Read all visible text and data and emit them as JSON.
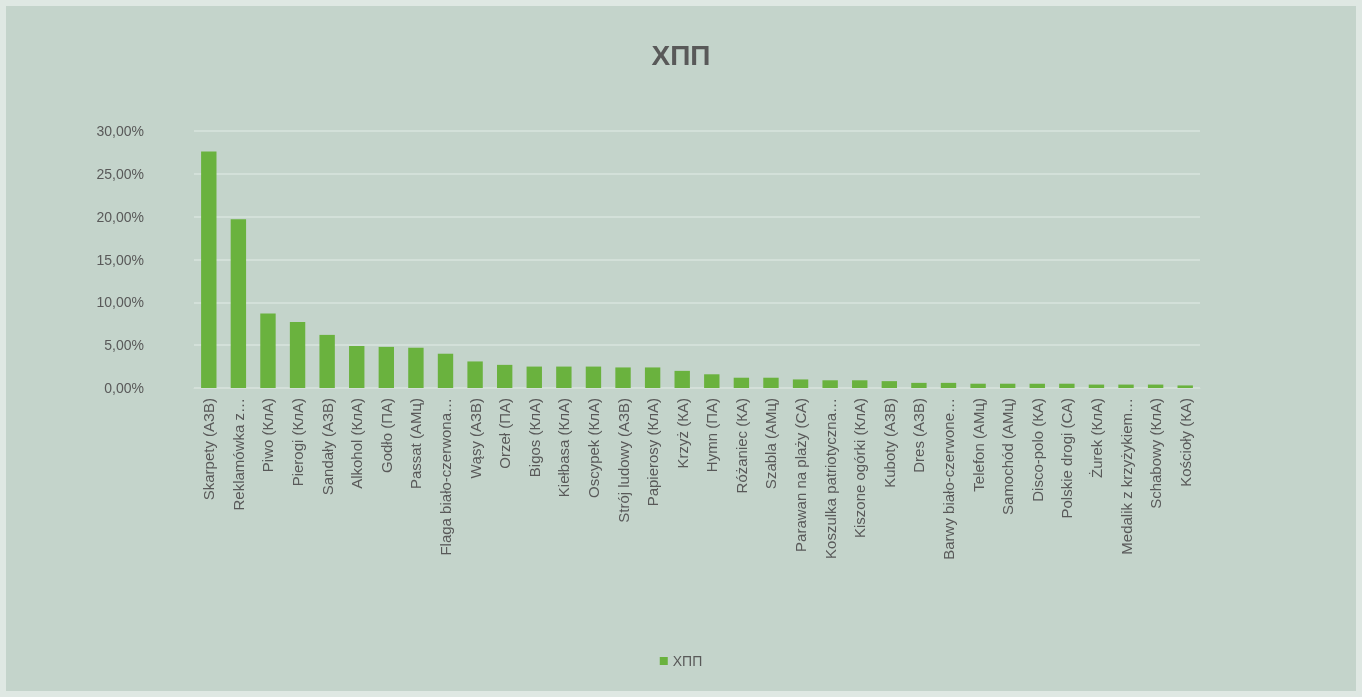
{
  "chart_data": {
    "type": "bar",
    "title": "ХПП",
    "categories": [
      "Skarpety (АЗВ)",
      "Reklamówka z…",
      "Piwo (КлА)",
      "Pierogi (КлА)",
      "Sandały (АЗВ)",
      "Alkohol (КлА)",
      "Godło (ПА)",
      "Passat (АМц)",
      "Flaga biało-czerwona…",
      "Wąsy (АЗВ)",
      "Orzeł (ПА)",
      "Bigos (КлА)",
      "Kiełbasa (КлА)",
      "Oscypek (КлА)",
      "Strój ludowy (АЗВ)",
      "Papierosy (КлА)",
      "Krzyż (КА)",
      "Hymn (ПА)",
      "Różaniec (КА)",
      "Szabla (АМц)",
      "Parawan na plaży (СА)",
      "Koszulka patriotyczna…",
      "Kiszone ogórki (КлА)",
      "Kuboty (АЗВ)",
      "Dres (АЗВ)",
      "Barwy biało-czerwone…",
      "Telefon (АМц)",
      "Samochód (АМц)",
      "Disco-polo (КА)",
      "Polskie drogi (СА)",
      "Żurek (КлА)",
      "Medalik z krzyżykiem…",
      "Schabowy (КлА)",
      "Kościoły (КА)"
    ],
    "series": [
      {
        "name": "ХПП",
        "color": "#6ab23e",
        "values": [
          27.6,
          19.7,
          8.7,
          7.7,
          6.2,
          4.9,
          4.8,
          4.7,
          4.0,
          3.1,
          2.7,
          2.5,
          2.5,
          2.5,
          2.4,
          2.4,
          2.0,
          1.6,
          1.2,
          1.2,
          1.0,
          0.9,
          0.9,
          0.8,
          0.6,
          0.6,
          0.5,
          0.5,
          0.5,
          0.5,
          0.4,
          0.4,
          0.4,
          0.3
        ]
      }
    ],
    "ylim": [
      0,
      30
    ],
    "yticks": [
      {
        "value": 0,
        "label": "0,00%"
      },
      {
        "value": 5,
        "label": "5,00%"
      },
      {
        "value": 10,
        "label": "10,00%"
      },
      {
        "value": 15,
        "label": "15,00%"
      },
      {
        "value": 20,
        "label": "20,00%"
      },
      {
        "value": 25,
        "label": "25,00%"
      },
      {
        "value": 30,
        "label": "30,00%"
      }
    ],
    "grid": "y",
    "legend": "bottom"
  }
}
